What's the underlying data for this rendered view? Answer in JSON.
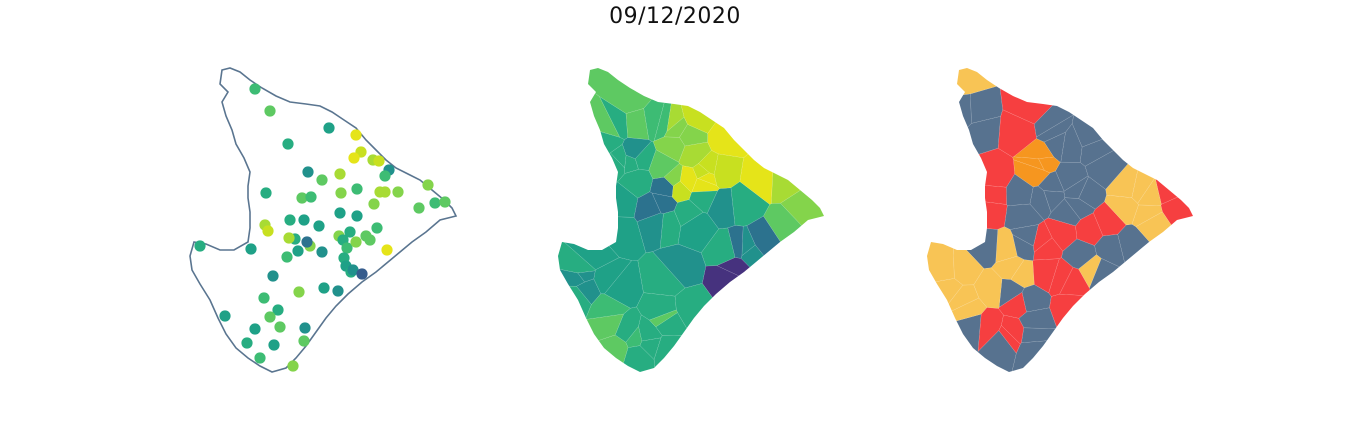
{
  "figure": {
    "title": "09/12/2020"
  },
  "palette": {
    "outline": "#5a7590",
    "viridis": [
      "#46327e",
      "#365c8d",
      "#2c728e",
      "#21918c",
      "#1fa187",
      "#27ad81",
      "#3dbc74",
      "#5ec962",
      "#84d44b",
      "#a8db34",
      "#c8e020",
      "#e5e419"
    ],
    "risk": {
      "low": "#57728f",
      "moderate": "#f8c455",
      "high": "#f6961f",
      "very_high": "#f63f40"
    }
  },
  "panels": [
    {
      "id": "points",
      "type": "point-map"
    },
    {
      "id": "continuous",
      "type": "choropleth"
    },
    {
      "id": "categorical",
      "type": "choropleth"
    }
  ]
}
